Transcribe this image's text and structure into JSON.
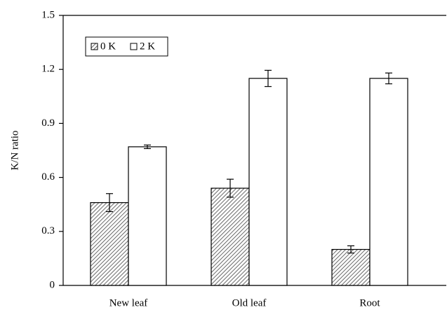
{
  "chart_data": {
    "type": "bar",
    "ylabel": "K/N ratio",
    "categories": [
      "New leaf",
      "Old leaf",
      "Root"
    ],
    "series": [
      {
        "name": "0 K",
        "color": "#444444",
        "pattern": "hatch",
        "values": [
          0.46,
          0.54,
          0.2
        ],
        "errors": [
          0.05,
          0.05,
          0.02
        ]
      },
      {
        "name": "2 K",
        "color": "#ffffff",
        "pattern": "solid",
        "values": [
          0.77,
          1.15,
          1.15
        ],
        "errors": [
          0.01,
          0.045,
          0.03
        ]
      }
    ],
    "ylim": [
      0,
      1.5
    ],
    "yticks": [
      0,
      0.3,
      0.6,
      0.9,
      1.2,
      1.5
    ],
    "grid": false,
    "legend": "upper left"
  }
}
